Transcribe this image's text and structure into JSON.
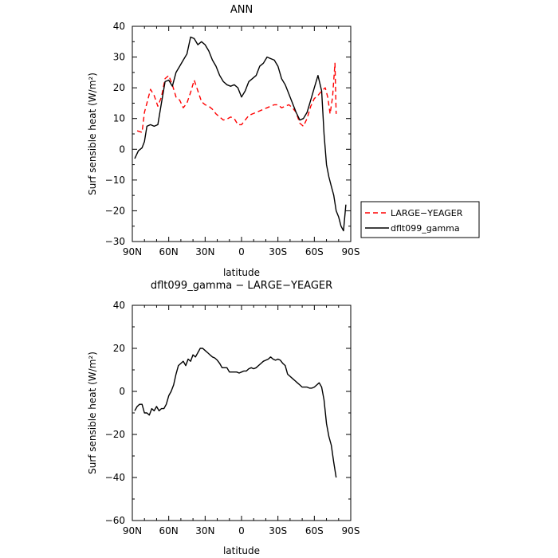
{
  "chart_data": [
    {
      "type": "line",
      "title": "ANN",
      "xlabel": "latitude",
      "ylabel": "Surf sensible heat (W/m²)",
      "xlim": [
        90,
        -90
      ],
      "ylim": [
        -30,
        40
      ],
      "xticks": [
        90,
        60,
        30,
        0,
        -30,
        -60,
        -90
      ],
      "xtick_labels": [
        "90N",
        "60N",
        "30N",
        "0",
        "30S",
        "60S",
        "90S"
      ],
      "yticks": [
        -30,
        -20,
        -10,
        0,
        10,
        20,
        30,
        40
      ],
      "ytick_labels": [
        "−30",
        "−20",
        "−10",
        "0",
        "10",
        "20",
        "30",
        "40"
      ],
      "legend": "right",
      "series": [
        {
          "name": "LARGE−YEAGER",
          "color": "#ff0000",
          "dash": "dashed",
          "x": [
            86,
            82,
            80,
            78,
            75,
            72,
            69,
            66,
            63,
            60,
            57,
            54,
            51,
            48,
            45,
            42,
            39,
            36,
            33,
            30,
            27,
            24,
            21,
            18,
            15,
            12,
            9,
            6,
            3,
            0,
            -3,
            -6,
            -9,
            -12,
            -15,
            -18,
            -21,
            -24,
            -27,
            -30,
            -33,
            -36,
            -39,
            -42,
            -45,
            -48,
            -51,
            -54,
            -57,
            -60,
            -63,
            -66,
            -69,
            -71,
            -73,
            -75,
            -77,
            -78
          ],
          "y": [
            6,
            5.5,
            12,
            15,
            19.5,
            17.5,
            14,
            17,
            23,
            24,
            21,
            17,
            16,
            13.5,
            15,
            18.5,
            22.5,
            19,
            15.5,
            14.5,
            14,
            13,
            11.5,
            10.5,
            9.5,
            9.8,
            10.5,
            10,
            8,
            8,
            9.5,
            11,
            11.5,
            12,
            12.5,
            13,
            13.5,
            14,
            14.5,
            14.5,
            13.5,
            14,
            14.5,
            13.5,
            12,
            8.5,
            7.5,
            10,
            14,
            16.5,
            17.5,
            19,
            20,
            17,
            11.5,
            17,
            28,
            11.5
          ]
        },
        {
          "name": "dflt099_gamma",
          "color": "#000000",
          "dash": "solid",
          "x": [
            88,
            85,
            82,
            80,
            78,
            75,
            72,
            69,
            66,
            63,
            60,
            57,
            54,
            51,
            48,
            45,
            42,
            39,
            36,
            33,
            30,
            27,
            24,
            21,
            18,
            15,
            12,
            9,
            6,
            3,
            0,
            -3,
            -6,
            -9,
            -12,
            -15,
            -18,
            -21,
            -24,
            -27,
            -30,
            -33,
            -36,
            -39,
            -42,
            -45,
            -48,
            -51,
            -54,
            -57,
            -60,
            -63,
            -66,
            -68,
            -70,
            -72,
            -74,
            -76,
            -78,
            -80,
            -82,
            -84,
            -86
          ],
          "y": [
            -3,
            -0.5,
            0.5,
            2.5,
            7.5,
            8,
            7.5,
            8,
            15,
            22,
            22.5,
            20.5,
            25,
            27,
            29,
            31,
            36.5,
            36,
            34,
            35,
            34,
            32,
            29,
            27,
            24,
            22,
            21,
            20.5,
            21,
            20,
            17,
            19,
            22,
            23,
            24,
            27,
            28,
            30,
            29.5,
            29,
            27,
            23,
            21,
            18,
            15,
            12,
            9.5,
            10,
            12,
            16,
            20,
            24,
            19,
            5,
            -5,
            -9,
            -12,
            -15,
            -20,
            -22,
            -25,
            -26.5,
            -18
          ]
        }
      ]
    },
    {
      "type": "line",
      "title": "dflt099_gamma − LARGE−YEAGER",
      "xlabel": "latitude",
      "ylabel": "Surf sensible heat (W/m²)",
      "xlim": [
        90,
        -90
      ],
      "ylim": [
        -60,
        40
      ],
      "xticks": [
        90,
        60,
        30,
        0,
        -30,
        -60,
        -90
      ],
      "xtick_labels": [
        "90N",
        "60N",
        "30N",
        "0",
        "30S",
        "60S",
        "90S"
      ],
      "yticks": [
        -60,
        -40,
        -20,
        0,
        20,
        40
      ],
      "ytick_labels": [
        "−60",
        "−40",
        "−20",
        "0",
        "20",
        "40"
      ],
      "series": [
        {
          "name": "",
          "color": "#000000",
          "dash": "solid",
          "x": [
            88,
            86,
            84,
            82,
            80,
            78,
            76,
            74,
            72,
            70,
            68,
            66,
            64,
            62,
            60,
            58,
            56,
            54,
            52,
            50,
            48,
            46,
            44,
            42,
            40,
            38,
            36,
            34,
            32,
            30,
            28,
            26,
            24,
            22,
            20,
            18,
            16,
            14,
            12,
            10,
            8,
            6,
            4,
            2,
            0,
            -2,
            -4,
            -6,
            -8,
            -10,
            -12,
            -14,
            -16,
            -18,
            -20,
            -22,
            -24,
            -26,
            -28,
            -30,
            -32,
            -34,
            -36,
            -38,
            -40,
            -42,
            -44,
            -46,
            -48,
            -50,
            -52,
            -54,
            -56,
            -58,
            -60,
            -62,
            -64,
            -66,
            -68,
            -70,
            -72,
            -74,
            -76,
            -78
          ],
          "y": [
            -9,
            -7,
            -6,
            -6,
            -10,
            -10,
            -11,
            -8,
            -9,
            -7,
            -9,
            -8,
            -8,
            -6,
            -2,
            0,
            3,
            8,
            12,
            13,
            14,
            12,
            15,
            14,
            17,
            16,
            18,
            20,
            20,
            19,
            18,
            17,
            16,
            15.5,
            14.5,
            13,
            11,
            11,
            11,
            9,
            9,
            9,
            9,
            8.5,
            9,
            9.5,
            9.5,
            10.5,
            11,
            10.5,
            11,
            12,
            13,
            14,
            14.5,
            15,
            16,
            15,
            14.5,
            15,
            14.5,
            13,
            12,
            8,
            7,
            6,
            5,
            4,
            3,
            2,
            2,
            2,
            1.5,
            1.5,
            2,
            3,
            4,
            2,
            -4,
            -15,
            -21,
            -25,
            -33,
            -40
          ]
        }
      ]
    }
  ]
}
